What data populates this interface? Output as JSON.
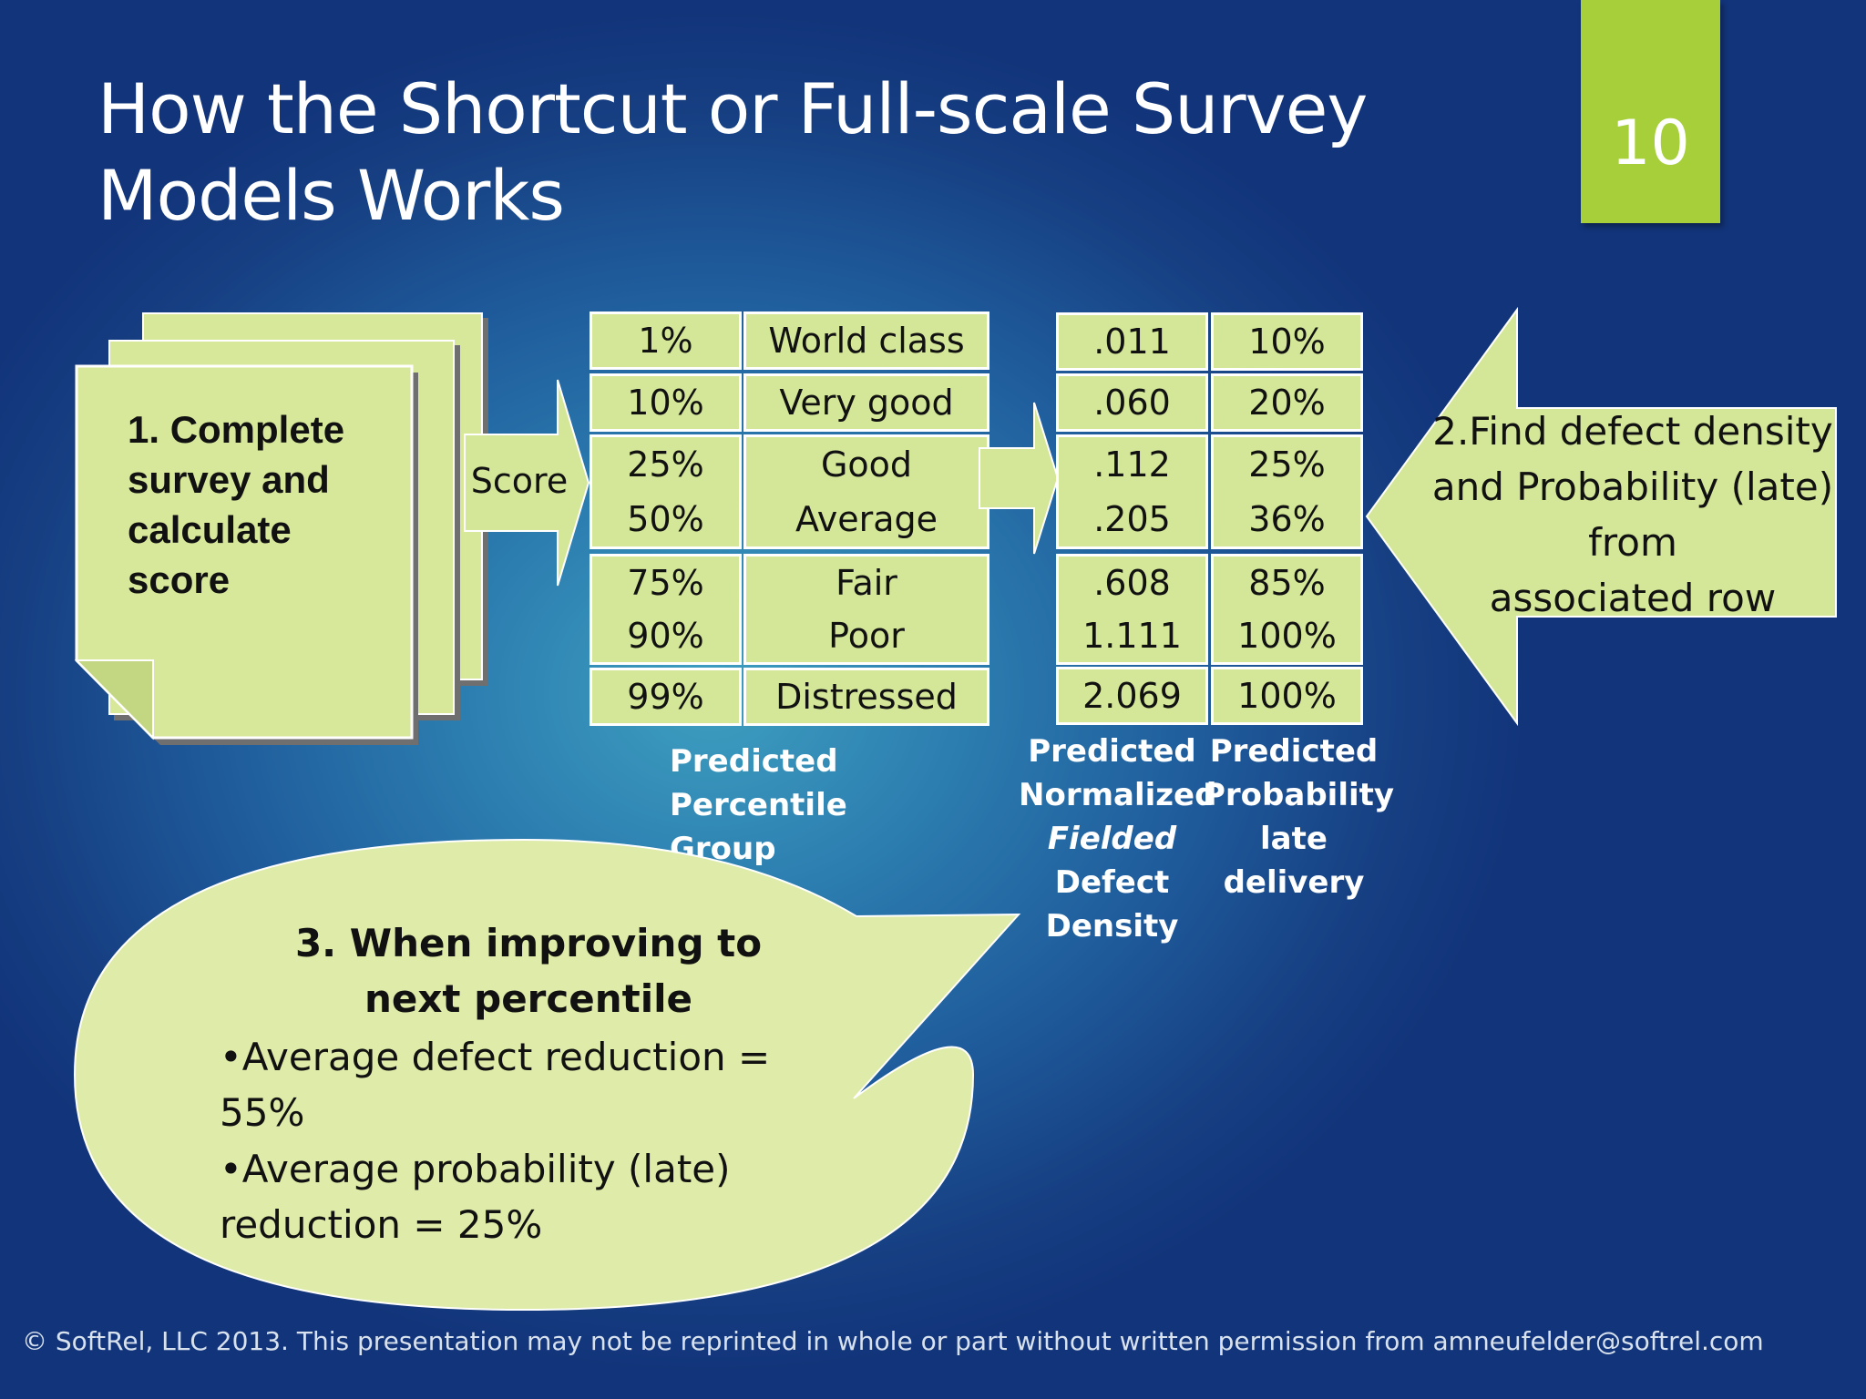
{
  "slide": {
    "title": "How the Shortcut or Full-scale Survey Models Works",
    "number": "10"
  },
  "step1": {
    "label": "1. Complete survey and calculate score",
    "arrow_label": "Score"
  },
  "percentile_table": {
    "caption": "Predicted Percentile Group",
    "rows": [
      {
        "percent": "1%",
        "group": "World class"
      },
      {
        "percent": "10%",
        "group": "Very good"
      },
      {
        "percent": "25%",
        "group": "Good"
      },
      {
        "percent": "50%",
        "group": "Average"
      },
      {
        "percent": "75%",
        "group": "Fair"
      },
      {
        "percent": "90%",
        "group": "Poor"
      },
      {
        "percent": "99%",
        "group": "Distressed"
      }
    ]
  },
  "density_table": {
    "caption_density": {
      "line1": "Predicted",
      "line2": "Normalized",
      "line3": "Fielded",
      "line4": "Defect",
      "line5": "Density"
    },
    "caption_probability": {
      "line1": "Predicted",
      "line2": "Probability",
      "line3": "late",
      "line4": "delivery"
    },
    "rows": [
      {
        "density": ".011",
        "probability": "10%"
      },
      {
        "density": ".060",
        "probability": "20%"
      },
      {
        "density": ".112",
        "probability": "25%"
      },
      {
        "density": ".205",
        "probability": "36%"
      },
      {
        "density": ".608",
        "probability": "85%"
      },
      {
        "density": "1.111",
        "probability": "100%"
      },
      {
        "density": "2.069",
        "probability": "100%"
      }
    ]
  },
  "step2": {
    "line1": "2.Find defect density",
    "line2": "and Probability (late)",
    "line3": "from",
    "line4": "associated row"
  },
  "step3": {
    "heading": "3. When improving to next percentile",
    "bullet1": "•Average defect reduction = 55%",
    "bullet2": "•Average probability (late) reduction = 25%"
  },
  "footer": "© SoftRel, LLC 2013.  This presentation may not be reprinted in whole or part without written permission from amneufelder@softrel.com",
  "colors": {
    "shape_fill": "#d4e798",
    "slide_number_bg": "#a6cf3a",
    "background": "#1f5c9c"
  }
}
